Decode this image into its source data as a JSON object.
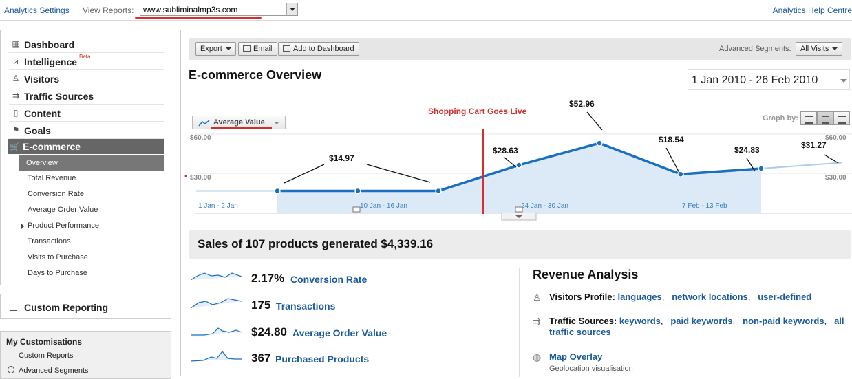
{
  "topbar": {
    "settings_link": "Analytics Settings",
    "view_reports_label": "View Reports:",
    "site_selected": "www.subliminalmp3s.com",
    "help_link": "Analytics Help Centre"
  },
  "sidebar": {
    "items": [
      {
        "label": "Dashboard",
        "icon": "dashboard-icon"
      },
      {
        "label": "Intelligence",
        "badge": "Beta",
        "icon": "intelligence-icon"
      },
      {
        "label": "Visitors",
        "icon": "visitors-icon"
      },
      {
        "label": "Traffic Sources",
        "icon": "traffic-sources-icon"
      },
      {
        "label": "Content",
        "icon": "content-icon"
      },
      {
        "label": "Goals",
        "icon": "goals-icon"
      },
      {
        "label": "E-commerce",
        "icon": "cart-icon",
        "active": true
      }
    ],
    "ecommerce_sub": [
      {
        "label": "Overview",
        "active": true
      },
      {
        "label": "Total Revenue"
      },
      {
        "label": "Conversion Rate"
      },
      {
        "label": "Average Order Value"
      },
      {
        "label": "Product Performance",
        "expandable": true
      },
      {
        "label": "Transactions"
      },
      {
        "label": "Visits to Purchase"
      },
      {
        "label": "Days to Purchase"
      }
    ],
    "custom_reporting": "Custom Reporting",
    "my_customisations": {
      "title": "My Customisations",
      "items": [
        "Custom Reports",
        "Advanced Segments"
      ]
    }
  },
  "toolbar": {
    "export": "Export",
    "email": "Email",
    "add_dashboard": "Add to Dashboard",
    "advanced_segments_label": "Advanced Segments:",
    "segment_value": "All Visits"
  },
  "page": {
    "title": "E-commerce Overview",
    "date_range": "1 Jan 2010 - 26 Feb 2010",
    "metric_selector": "Average Value",
    "graph_by_label": "Graph by:"
  },
  "chart_data": {
    "type": "line",
    "series": [
      {
        "name": "Average Value",
        "values": [
          0,
          0,
          0,
          0,
          28.63,
          52.96,
          18.54,
          24.83,
          31.27
        ]
      }
    ],
    "y_ticks": [
      "$60.00",
      "$30.00"
    ],
    "x_tick_labels": [
      "1 Jan - 2 Jan",
      "10 Jan - 16 Jan",
      "24 Jan - 30 Jan",
      "7 Feb - 13 Feb"
    ],
    "ylim": [
      0,
      60
    ],
    "annotations": [
      {
        "text": "$14.97"
      },
      {
        "text": "$28.63"
      },
      {
        "text": "$52.96"
      },
      {
        "text": "$18.54"
      },
      {
        "text": "$24.83"
      },
      {
        "text": "$31.27"
      },
      {
        "text": "Shopping Cart Goes Live",
        "color": "#d32f2f"
      }
    ],
    "line_color": "#1a6fc0",
    "fill_color": "#dbeaf6",
    "marker_color": "#d32f2f"
  },
  "summary": {
    "sales_text": "Sales of 107 products generated $4,339.16"
  },
  "kpis": [
    {
      "value": "2.17%",
      "label": "Conversion Rate"
    },
    {
      "value": "175",
      "label": "Transactions"
    },
    {
      "value": "$24.80",
      "label": "Average Order Value"
    },
    {
      "value": "367",
      "label": "Purchased Products"
    }
  ],
  "revenue_analysis": {
    "title": "Revenue Analysis",
    "visitors_profile": {
      "head": "Visitors Profile:",
      "links": [
        "languages",
        "network locations",
        "user-defined"
      ]
    },
    "traffic_sources": {
      "head": "Traffic Sources:",
      "links": [
        "keywords",
        "paid keywords",
        "non-paid keywords",
        "all traffic sources"
      ]
    },
    "map_overlay": {
      "link": "Map Overlay",
      "sub": "Geolocation visualisation"
    }
  }
}
